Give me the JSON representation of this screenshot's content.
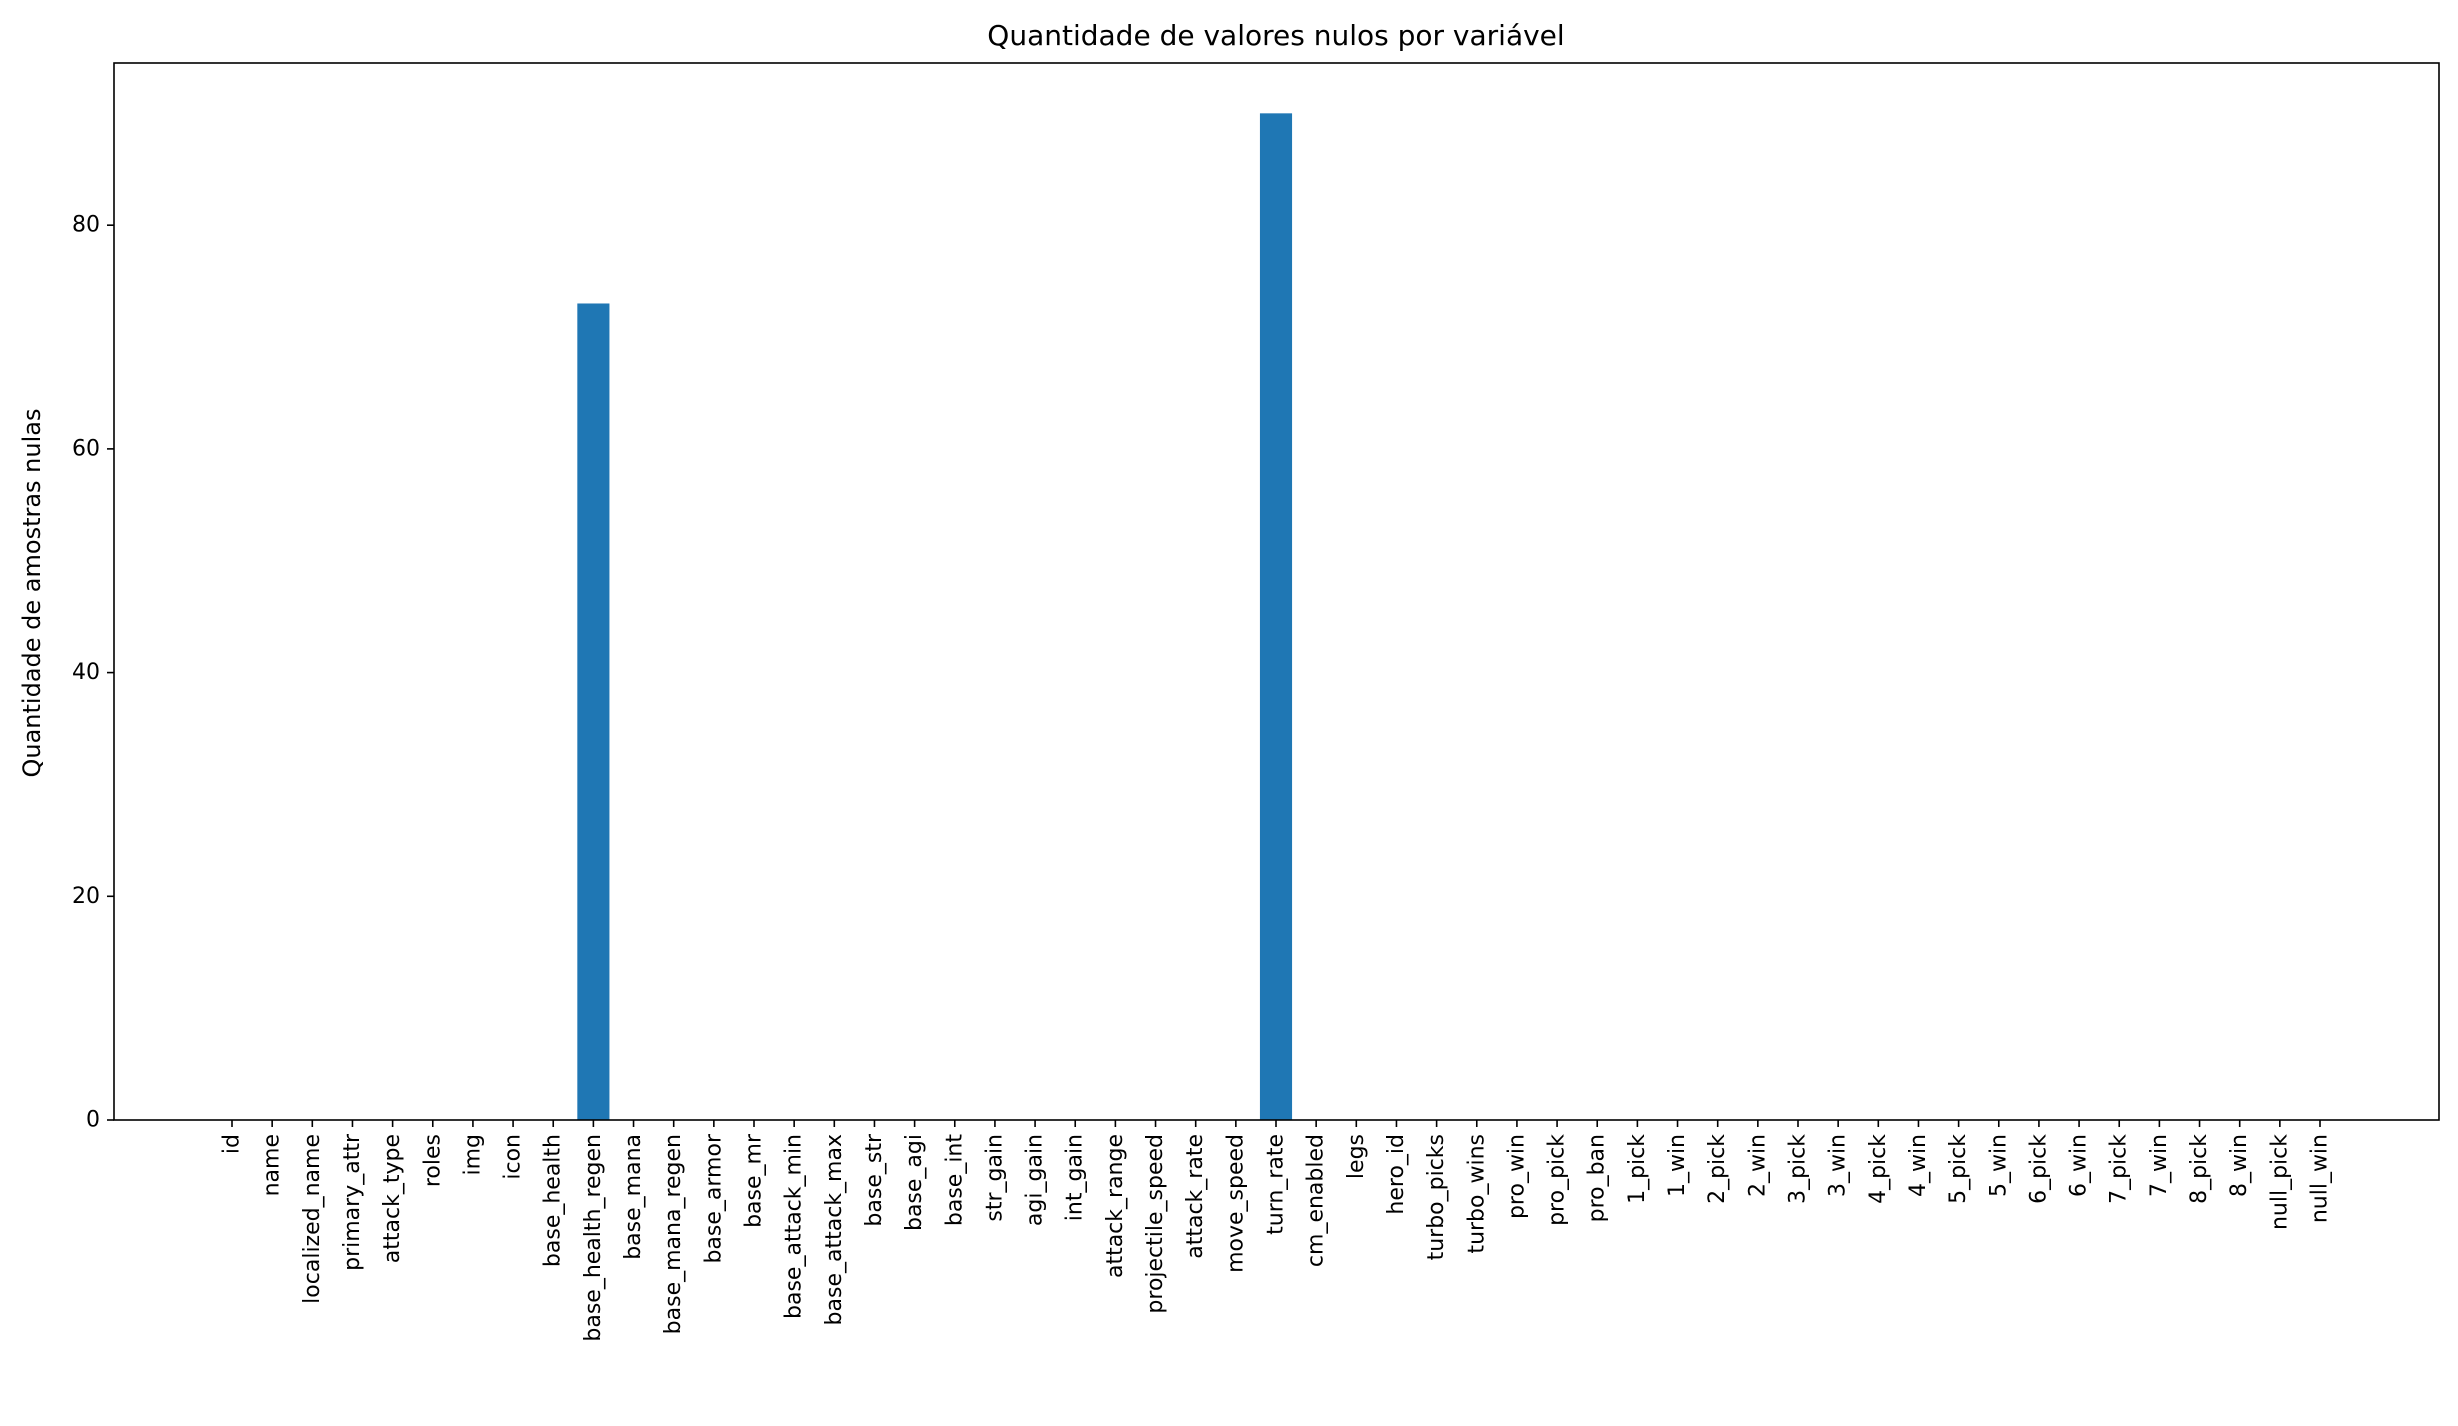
{
  "chart_data": {
    "type": "bar",
    "title": "Quantidade de valores nulos por variável",
    "xlabel": "",
    "ylabel": "Quantidade de amostras nulas",
    "categories": [
      "id",
      "name",
      "localized_name",
      "primary_attr",
      "attack_type",
      "roles",
      "img",
      "icon",
      "base_health",
      "base_health_regen",
      "base_mana",
      "base_mana_regen",
      "base_armor",
      "base_mr",
      "base_attack_min",
      "base_attack_max",
      "base_str",
      "base_agi",
      "base_int",
      "str_gain",
      "agi_gain",
      "int_gain",
      "attack_range",
      "projectile_speed",
      "attack_rate",
      "move_speed",
      "turn_rate",
      "cm_enabled",
      "legs",
      "hero_id",
      "turbo_picks",
      "turbo_wins",
      "pro_win",
      "pro_pick",
      "pro_ban",
      "1_pick",
      "1_win",
      "2_pick",
      "2_win",
      "3_pick",
      "3_win",
      "4_pick",
      "4_win",
      "5_pick",
      "5_win",
      "6_pick",
      "6_win",
      "7_pick",
      "7_win",
      "8_pick",
      "8_win",
      "null_pick",
      "null_win"
    ],
    "values": [
      0,
      0,
      0,
      0,
      0,
      0,
      0,
      0,
      0,
      73,
      0,
      0,
      0,
      0,
      0,
      0,
      0,
      0,
      0,
      0,
      0,
      0,
      0,
      0,
      0,
      0,
      90,
      0,
      0,
      0,
      0,
      0,
      0,
      0,
      0,
      0,
      0,
      0,
      0,
      0,
      0,
      0,
      0,
      0,
      0,
      0,
      0,
      0,
      0,
      0,
      0,
      0,
      0
    ],
    "ylim": [
      0,
      94.5
    ],
    "yticks": [
      0,
      20,
      40,
      60,
      80
    ],
    "grid": false,
    "legend": "none",
    "bar_color": "#1f77b4"
  }
}
